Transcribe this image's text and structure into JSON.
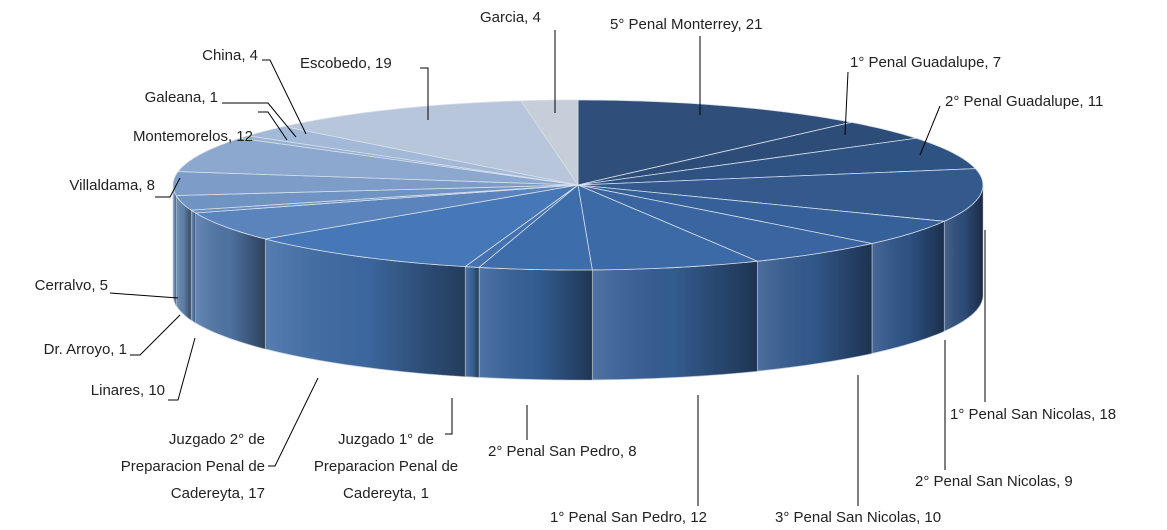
{
  "chart_data": {
    "type": "pie3d",
    "values": [
      21,
      7,
      11,
      18,
      9,
      10,
      12,
      8,
      1,
      17,
      10,
      1,
      5,
      8,
      12,
      1,
      4,
      19,
      4
    ],
    "value_labels": [
      "5° Penal Monterrey, 21",
      "1° Penal Guadalupe, 7",
      "2° Penal Guadalupe, 11",
      "1° Penal San Nicolas, 18",
      "2° Penal San Nicolas, 9",
      "3° Penal San Nicolas, 10",
      "1° Penal San Pedro, 12",
      "2° Penal San Pedro, 8",
      "Juzgado 1° de\nPreparacion Penal de\nCadereyta, 1",
      "Juzgado 2° de\nPreparacion Penal de\nCadereyta, 17",
      "Linares, 10",
      "Dr. Arroyo, 1",
      "Cerralvo, 5",
      "Villaldama, 8",
      "Montemorelos, 12",
      "Galeana, 1",
      "China, 4",
      "Escobedo, 19",
      "Garcia, 4"
    ],
    "colors": [
      "#2f4f7a",
      "#2d4d78",
      "#2e5282",
      "#34598c",
      "#36609a",
      "#3a65a0",
      "#3c6aa6",
      "#3d6dab",
      "#4472b0",
      "#4678b8",
      "#5a84bb",
      "#6b8fc2",
      "#6f94c4",
      "#7d9dc8",
      "#8ca8cf",
      "#98b1d3",
      "#a3b9d8",
      "#b8c6dc",
      "#c5ced9"
    ]
  }
}
